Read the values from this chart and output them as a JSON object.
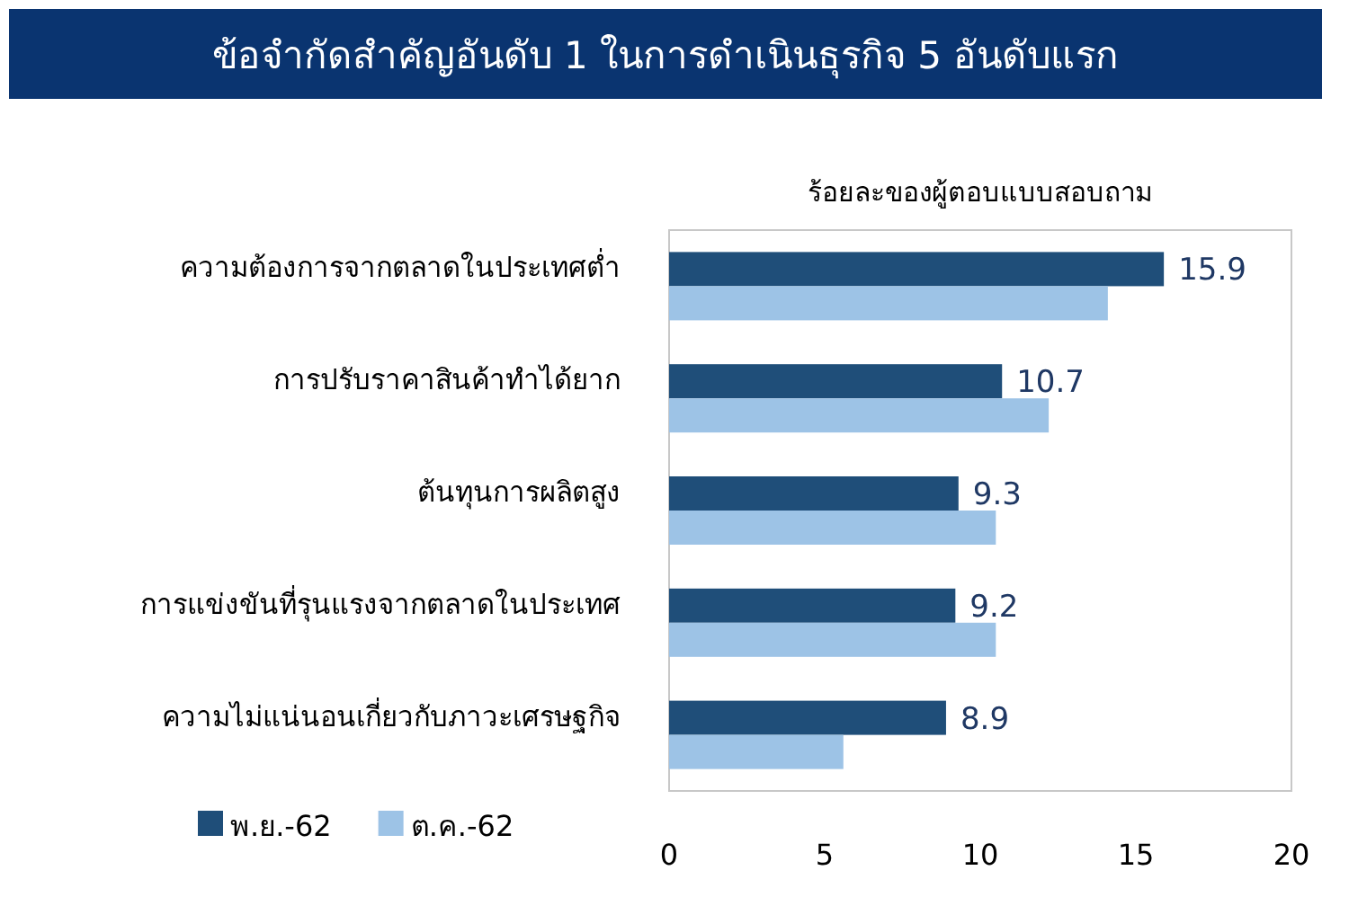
{
  "chart_data": {
    "type": "bar",
    "orientation": "horizontal",
    "title": "ข้อจำกัดสำคัญอันดับ 1 ในการดำเนินธุรกิจ 5 อันดับแรก",
    "xlabel": "ร้อยละของผู้ตอบแบบสอบถาม",
    "categories": [
      "ความต้องการจากตลาดในประเทศต่ำ",
      "การปรับราคาสินค้าทำได้ยาก",
      "ต้นทุนการผลิตสูง",
      "การแข่งขันที่รุนแรงจากตลาดในประเทศ",
      "ความไม่แน่นอนเกี่ยวกับภาวะเศรษฐกิจ"
    ],
    "series": [
      {
        "name": "พ.ย.-62",
        "color": "#1f4e79",
        "values": [
          15.9,
          10.7,
          9.3,
          9.2,
          8.9
        ],
        "value_labels": [
          "15.9",
          "10.7",
          "9.3",
          "9.2",
          "8.9"
        ]
      },
      {
        "name": "ต.ค.-62",
        "color": "#9dc3e6",
        "values": [
          14.1,
          12.2,
          10.5,
          10.5,
          5.6
        ]
      }
    ],
    "xlim": [
      0,
      20
    ],
    "xticks": [
      0,
      5,
      10,
      15,
      20
    ],
    "grid": false,
    "legend": "bottom left"
  }
}
